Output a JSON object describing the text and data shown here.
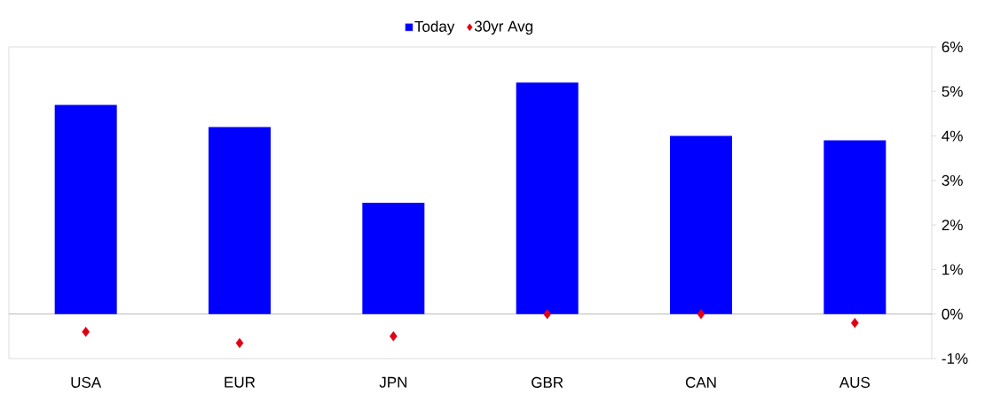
{
  "chart_data": {
    "type": "bar",
    "categories": [
      "USA",
      "EUR",
      "JPN",
      "GBR",
      "CAN",
      "AUS"
    ],
    "series": [
      {
        "name": "Today",
        "color": "#0000ff",
        "values": [
          4.7,
          4.2,
          2.5,
          5.2,
          4.0,
          3.9
        ]
      },
      {
        "name": "30yr Avg",
        "type": "scatter",
        "color": "#e00015",
        "values": [
          -0.4,
          -0.65,
          -0.5,
          0.0,
          0.0,
          -0.2
        ]
      }
    ],
    "marker": "diamond",
    "ylim": [
      -1,
      6
    ],
    "yticks": [
      {
        "value": -1,
        "label": "-1%"
      },
      {
        "value": 0,
        "label": "0%"
      },
      {
        "value": 1,
        "label": "1%"
      },
      {
        "value": 2,
        "label": "2%"
      },
      {
        "value": 3,
        "label": "3%"
      },
      {
        "value": 4,
        "label": "4%"
      },
      {
        "value": 5,
        "label": "5%"
      },
      {
        "value": 6,
        "label": "6%"
      }
    ],
    "ref_lines": [
      {
        "axis": "y",
        "value": 0,
        "color": "#a6a6a6"
      }
    ],
    "legend": "top"
  }
}
